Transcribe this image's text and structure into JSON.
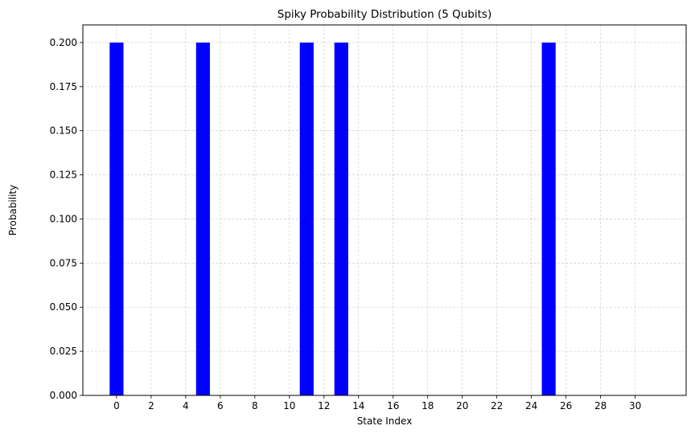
{
  "chart_data": {
    "type": "bar",
    "title": "Spiky Probability Distribution (5 Qubits)",
    "xlabel": "State Index",
    "ylabel": "Probability",
    "x": [
      0,
      1,
      2,
      3,
      4,
      5,
      6,
      7,
      8,
      9,
      10,
      11,
      12,
      13,
      14,
      15,
      16,
      17,
      18,
      19,
      20,
      21,
      22,
      23,
      24,
      25,
      26,
      27,
      28,
      29,
      30,
      31
    ],
    "values": [
      0.2,
      0,
      0,
      0,
      0,
      0.2,
      0,
      0,
      0,
      0,
      0,
      0.2,
      0,
      0.2,
      0,
      0,
      0,
      0,
      0,
      0,
      0,
      0,
      0,
      0,
      0,
      0.2,
      0,
      0,
      0,
      0,
      0,
      0
    ],
    "xticks": [
      0,
      2,
      4,
      6,
      8,
      10,
      12,
      14,
      16,
      18,
      20,
      22,
      24,
      26,
      28,
      30
    ],
    "yticks": [
      0.0,
      0.025,
      0.05,
      0.075,
      0.1,
      0.125,
      0.15,
      0.175,
      0.2
    ],
    "ytick_labels": [
      "0.000",
      "0.025",
      "0.050",
      "0.075",
      "0.100",
      "0.125",
      "0.150",
      "0.175",
      "0.200"
    ],
    "xlim": [
      -1.95,
      32.95
    ],
    "ylim": [
      0,
      0.21
    ],
    "bar_color": "#0000ff",
    "grid": true,
    "grid_style": "dashed"
  }
}
